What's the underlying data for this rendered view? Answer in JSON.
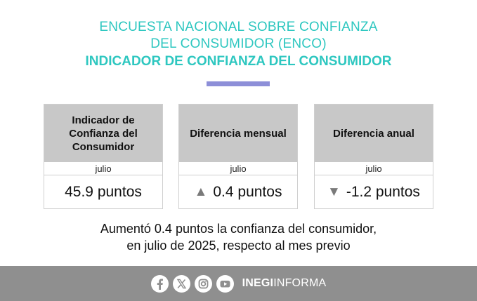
{
  "header": {
    "line1": "ENCUESTA NACIONAL SOBRE CONFIANZA",
    "line2": "DEL CONSUMIDOR (ENCO)",
    "line3": "INDICADOR DE CONFIANZA DEL CONSUMIDOR",
    "accent_color": "#2ec7c0"
  },
  "cards": [
    {
      "title": "Indicador de Confianza del Consumidor",
      "period": "julio",
      "value": "45.9 puntos",
      "arrow": ""
    },
    {
      "title": "Diferencia mensual",
      "period": "julio",
      "value": "0.4 puntos",
      "arrow": "▲"
    },
    {
      "title": "Diferencia anual",
      "period": "julio",
      "value": "-1.2 puntos",
      "arrow": "▼"
    }
  ],
  "summary": {
    "line1": "Aumentó 0.4 puntos la confianza del consumidor,",
    "line2": "en julio de 2025, respecto al mes previo"
  },
  "footer": {
    "icons": [
      "facebook-icon",
      "x-icon",
      "instagram-icon",
      "youtube-icon"
    ],
    "brand_bold": "INEGI",
    "brand_light": "INFORMA"
  }
}
